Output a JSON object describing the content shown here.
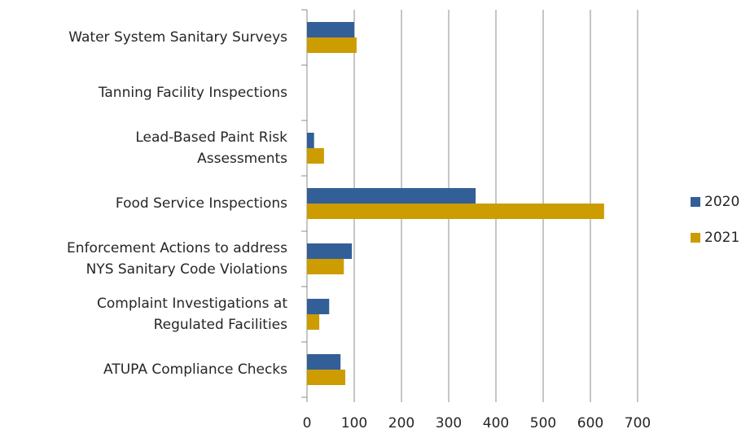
{
  "chart_data": {
    "type": "hbar",
    "categories": [
      "Water System Sanitary Surveys",
      "Tanning Facility Inspections",
      "Lead-Based Paint Risk\nAssessments",
      "Food Service Inspections",
      "Enforcement Actions to address\nNYS Sanitary Code Violations",
      "Complaint Investigations at\nRegulated Facilities",
      "ATUPA Compliance Checks"
    ],
    "series": [
      {
        "name": "2020",
        "color": "#335f98",
        "values": [
          100,
          0,
          15,
          357,
          95,
          47,
          71
        ]
      },
      {
        "name": "2021",
        "color": "#cc9c00",
        "values": [
          105,
          0,
          36,
          629,
          78,
          26,
          81
        ]
      }
    ],
    "xlim": [
      0,
      700
    ],
    "xticks": [
      0,
      100,
      200,
      300,
      400,
      500,
      600,
      700
    ],
    "grid": true,
    "legend": "right"
  }
}
